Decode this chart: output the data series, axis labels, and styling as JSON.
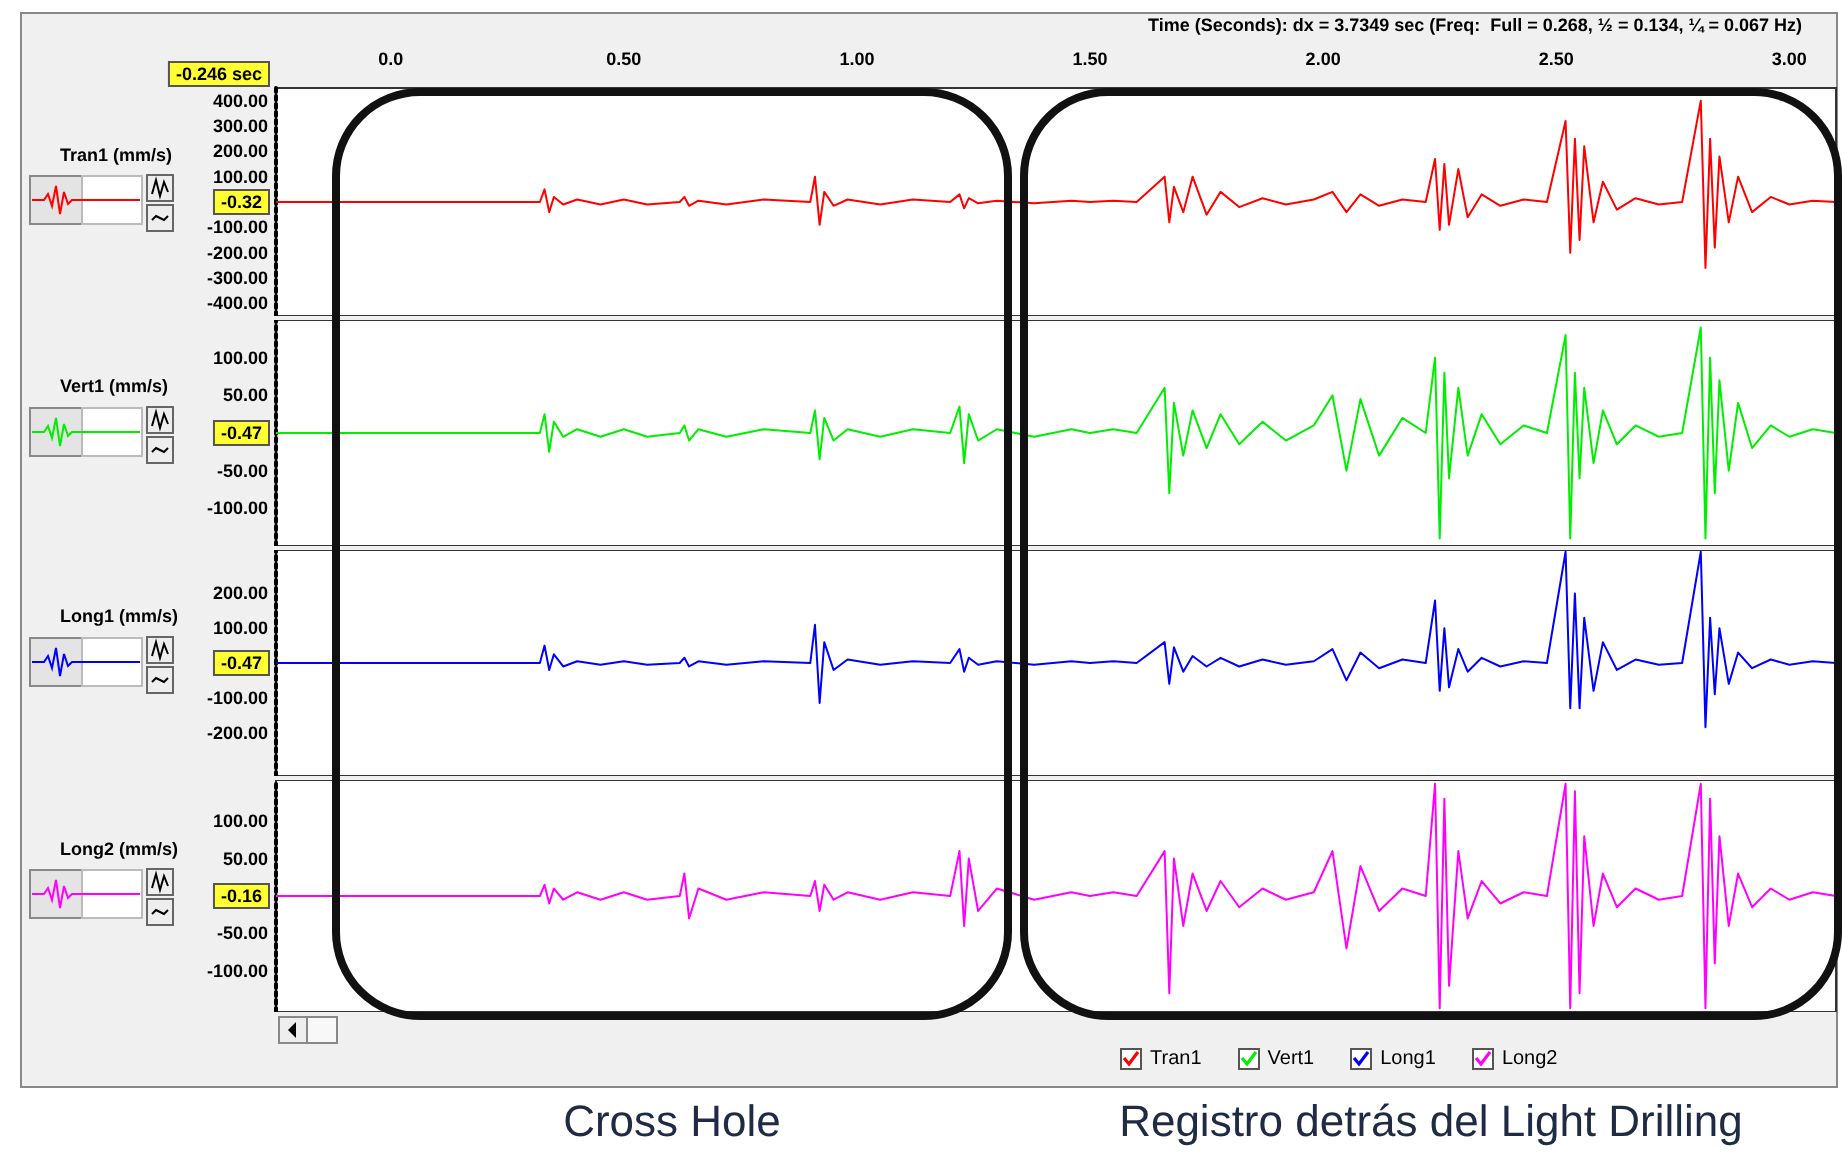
{
  "chart_data": [
    {
      "type": "line",
      "xlabel": "Time (Seconds): dx = 3.7349 sec (Freq:  Full = 0.268, ½ = 0.134, ¼ = 0.067 Hz)",
      "ylabel": "Tran1 (mm/s)",
      "xlim": [
        -0.246,
        3.1
      ],
      "xticks": [
        {
          "value": 0,
          "label": "0.0"
        },
        {
          "value": 0.5,
          "label": "0.50"
        },
        {
          "value": 1,
          "label": "1.00"
        },
        {
          "value": 1.5,
          "label": "1.50"
        },
        {
          "value": 2,
          "label": "2.00"
        },
        {
          "value": 2.5,
          "label": "2.50"
        },
        {
          "value": 3,
          "label": "3.00"
        }
      ],
      "ylim": [
        -450,
        450
      ],
      "yticks": [
        {
          "value": 400,
          "label": "400.00"
        },
        {
          "value": 300,
          "label": "300.00"
        },
        {
          "value": 200,
          "label": "200.00"
        },
        {
          "value": 100,
          "label": "100.00"
        },
        {
          "value": -100,
          "label": "-100.00"
        },
        {
          "value": -200,
          "label": "-200.00"
        },
        {
          "value": -300,
          "label": "-300.00"
        },
        {
          "value": -400,
          "label": "-400.00"
        }
      ],
      "annotations": [
        "-0.32",
        "-0.246 sec"
      ],
      "grid": false,
      "legend": "bottom",
      "marker": "none",
      "line_style": "solid",
      "x": [
        -0.246,
        0.0,
        0.32,
        0.33,
        0.34,
        0.35,
        0.37,
        0.4,
        0.45,
        0.5,
        0.55,
        0.62,
        0.63,
        0.64,
        0.66,
        0.72,
        0.8,
        0.9,
        0.91,
        0.92,
        0.93,
        0.95,
        0.98,
        1.05,
        1.12,
        1.2,
        1.22,
        1.23,
        1.24,
        1.26,
        1.3,
        1.38,
        1.46,
        1.5,
        1.55,
        1.6,
        1.66,
        1.67,
        1.68,
        1.7,
        1.72,
        1.75,
        1.78,
        1.82,
        1.87,
        1.92,
        1.98,
        2.02,
        2.05,
        2.08,
        2.12,
        2.17,
        2.22,
        2.24,
        2.25,
        2.26,
        2.27,
        2.29,
        2.31,
        2.34,
        2.38,
        2.43,
        2.48,
        2.52,
        2.53,
        2.54,
        2.55,
        2.56,
        2.58,
        2.6,
        2.63,
        2.67,
        2.72,
        2.77,
        2.81,
        2.82,
        2.83,
        2.84,
        2.85,
        2.87,
        2.89,
        2.92,
        2.96,
        3.0,
        3.05,
        3.1
      ],
      "series": [
        {
          "name": "Tran1",
          "color": "#ff0000",
          "values": [
            0,
            0,
            0,
            50,
            -40,
            20,
            -10,
            10,
            -10,
            10,
            -10,
            0,
            20,
            -15,
            5,
            -10,
            10,
            0,
            100,
            -90,
            40,
            -15,
            10,
            -10,
            10,
            0,
            30,
            -25,
            15,
            -5,
            5,
            -5,
            5,
            0,
            5,
            0,
            100,
            -80,
            60,
            -40,
            100,
            -50,
            40,
            -20,
            15,
            -10,
            10,
            40,
            -40,
            30,
            -15,
            10,
            0,
            170,
            -110,
            150,
            -90,
            130,
            -60,
            30,
            -15,
            10,
            0,
            320,
            -200,
            250,
            -150,
            220,
            -80,
            80,
            -30,
            15,
            -10,
            0,
            400,
            -260,
            250,
            -180,
            180,
            -80,
            100,
            -40,
            20,
            -10,
            5,
            0
          ]
        }
      ]
    },
    {
      "type": "line",
      "ylabel": "Vert1 (mm/s)",
      "xlim": [
        -0.246,
        3.1
      ],
      "ylim": [
        -150,
        150
      ],
      "yticks": [
        {
          "value": 100,
          "label": "100.00"
        },
        {
          "value": 50,
          "label": "50.00"
        },
        {
          "value": -50,
          "label": "-50.00"
        },
        {
          "value": -100,
          "label": "-100.00"
        }
      ],
      "annotations": [
        "-0.47"
      ],
      "tick_labels": "y",
      "grid": false,
      "legend": "bottom",
      "marker": "none",
      "line_style": "solid",
      "x": [
        -0.246,
        0.0,
        0.32,
        0.33,
        0.34,
        0.35,
        0.37,
        0.4,
        0.45,
        0.5,
        0.55,
        0.62,
        0.63,
        0.64,
        0.66,
        0.72,
        0.8,
        0.9,
        0.91,
        0.92,
        0.93,
        0.95,
        0.98,
        1.05,
        1.12,
        1.2,
        1.22,
        1.23,
        1.24,
        1.26,
        1.3,
        1.38,
        1.46,
        1.5,
        1.55,
        1.6,
        1.66,
        1.67,
        1.68,
        1.7,
        1.72,
        1.75,
        1.78,
        1.82,
        1.87,
        1.92,
        1.98,
        2.02,
        2.05,
        2.08,
        2.12,
        2.17,
        2.22,
        2.24,
        2.25,
        2.26,
        2.27,
        2.29,
        2.31,
        2.34,
        2.38,
        2.43,
        2.48,
        2.52,
        2.53,
        2.54,
        2.55,
        2.56,
        2.58,
        2.6,
        2.63,
        2.67,
        2.72,
        2.77,
        2.81,
        2.82,
        2.83,
        2.84,
        2.85,
        2.87,
        2.89,
        2.92,
        2.96,
        3.0,
        3.05,
        3.1
      ],
      "series": [
        {
          "name": "Vert1",
          "color": "#00ee00",
          "values": [
            0,
            0,
            0,
            25,
            -25,
            15,
            -5,
            5,
            -5,
            5,
            -5,
            0,
            10,
            -10,
            5,
            -5,
            5,
            0,
            30,
            -35,
            20,
            -10,
            5,
            -5,
            5,
            0,
            35,
            -40,
            25,
            -10,
            5,
            -5,
            5,
            0,
            5,
            0,
            60,
            -80,
            40,
            -30,
            30,
            -20,
            25,
            -15,
            15,
            -10,
            10,
            50,
            -50,
            45,
            -30,
            20,
            0,
            100,
            -140,
            80,
            -60,
            60,
            -30,
            25,
            -15,
            10,
            0,
            130,
            -140,
            80,
            -60,
            60,
            -40,
            30,
            -15,
            10,
            -5,
            0,
            140,
            -140,
            100,
            -80,
            70,
            -50,
            40,
            -20,
            10,
            -5,
            5,
            0
          ]
        }
      ]
    },
    {
      "type": "line",
      "ylabel": "Long1 (mm/s)",
      "xlim": [
        -0.246,
        3.1
      ],
      "ylim": [
        -325,
        325
      ],
      "yticks": [
        {
          "value": 200,
          "label": "200.00"
        },
        {
          "value": 100,
          "label": "100.00"
        },
        {
          "value": -100,
          "label": "-100.00"
        },
        {
          "value": -200,
          "label": "-200.00"
        }
      ],
      "annotations": [
        "-0.47"
      ],
      "tick_labels": "y",
      "grid": false,
      "legend": "bottom",
      "marker": "none",
      "line_style": "solid",
      "x": [
        -0.246,
        0.0,
        0.32,
        0.33,
        0.34,
        0.35,
        0.37,
        0.4,
        0.45,
        0.5,
        0.55,
        0.62,
        0.63,
        0.64,
        0.66,
        0.72,
        0.8,
        0.9,
        0.91,
        0.92,
        0.93,
        0.95,
        0.98,
        1.05,
        1.12,
        1.2,
        1.22,
        1.23,
        1.24,
        1.26,
        1.3,
        1.38,
        1.46,
        1.5,
        1.55,
        1.6,
        1.66,
        1.67,
        1.68,
        1.7,
        1.72,
        1.75,
        1.78,
        1.82,
        1.87,
        1.92,
        1.98,
        2.02,
        2.05,
        2.08,
        2.12,
        2.17,
        2.22,
        2.24,
        2.25,
        2.26,
        2.27,
        2.29,
        2.31,
        2.34,
        2.38,
        2.43,
        2.48,
        2.52,
        2.53,
        2.54,
        2.55,
        2.56,
        2.58,
        2.6,
        2.63,
        2.67,
        2.72,
        2.77,
        2.81,
        2.82,
        2.83,
        2.84,
        2.85,
        2.87,
        2.89,
        2.92,
        2.96,
        3.0,
        3.05,
        3.1
      ],
      "series": [
        {
          "name": "Long1",
          "color": "#0000ff",
          "values": [
            0,
            0,
            0,
            50,
            -20,
            25,
            -10,
            5,
            -5,
            5,
            -5,
            0,
            15,
            -10,
            5,
            -5,
            5,
            0,
            110,
            -115,
            60,
            -20,
            10,
            -5,
            5,
            0,
            40,
            -25,
            15,
            -5,
            5,
            -5,
            5,
            0,
            5,
            0,
            60,
            -60,
            45,
            -25,
            20,
            -10,
            15,
            -10,
            10,
            -5,
            5,
            40,
            -50,
            30,
            -15,
            10,
            0,
            180,
            -80,
            100,
            -70,
            40,
            -25,
            15,
            -10,
            5,
            0,
            320,
            -130,
            200,
            -130,
            130,
            -80,
            60,
            -20,
            10,
            -5,
            0,
            320,
            -185,
            130,
            -90,
            100,
            -60,
            30,
            -15,
            10,
            -5,
            5,
            0
          ]
        }
      ]
    },
    {
      "type": "line",
      "ylabel": "Long2 (mm/s)",
      "xlim": [
        -0.246,
        3.1
      ],
      "ylim": [
        -155,
        155
      ],
      "yticks": [
        {
          "value": 100,
          "label": "100.00"
        },
        {
          "value": 50,
          "label": "50.00"
        },
        {
          "value": -50,
          "label": "-50.00"
        },
        {
          "value": -100,
          "label": "-100.00"
        }
      ],
      "annotations": [
        "-0.16",
        "Cross Hole",
        "Registro detrás del Light Drilling"
      ],
      "tick_labels": "y",
      "grid": false,
      "legend": "bottom",
      "marker": "none",
      "line_style": "solid",
      "x": [
        -0.246,
        0.0,
        0.32,
        0.33,
        0.34,
        0.35,
        0.37,
        0.4,
        0.45,
        0.5,
        0.55,
        0.62,
        0.63,
        0.64,
        0.66,
        0.72,
        0.8,
        0.9,
        0.91,
        0.92,
        0.93,
        0.95,
        0.98,
        1.05,
        1.12,
        1.2,
        1.22,
        1.23,
        1.24,
        1.26,
        1.3,
        1.38,
        1.46,
        1.5,
        1.55,
        1.6,
        1.66,
        1.67,
        1.68,
        1.7,
        1.72,
        1.75,
        1.78,
        1.82,
        1.87,
        1.92,
        1.98,
        2.02,
        2.05,
        2.08,
        2.12,
        2.17,
        2.22,
        2.24,
        2.25,
        2.26,
        2.27,
        2.29,
        2.31,
        2.34,
        2.38,
        2.43,
        2.48,
        2.52,
        2.53,
        2.54,
        2.55,
        2.56,
        2.58,
        2.6,
        2.63,
        2.67,
        2.72,
        2.77,
        2.81,
        2.82,
        2.83,
        2.84,
        2.85,
        2.87,
        2.89,
        2.92,
        2.96,
        3.0,
        3.05,
        3.1
      ],
      "series": [
        {
          "name": "Long2",
          "color": "#ff00ff",
          "values": [
            0,
            0,
            0,
            15,
            -10,
            10,
            -5,
            5,
            -5,
            5,
            -5,
            0,
            30,
            -30,
            10,
            -5,
            5,
            0,
            20,
            -20,
            15,
            -5,
            5,
            -5,
            5,
            0,
            60,
            -40,
            50,
            -20,
            10,
            -5,
            5,
            0,
            5,
            0,
            60,
            -130,
            50,
            -40,
            30,
            -20,
            20,
            -15,
            10,
            -5,
            5,
            60,
            -70,
            40,
            -20,
            10,
            0,
            150,
            -150,
            130,
            -120,
            60,
            -30,
            20,
            -10,
            5,
            0,
            150,
            -150,
            140,
            -130,
            80,
            -40,
            30,
            -15,
            10,
            -5,
            0,
            150,
            -150,
            130,
            -90,
            80,
            -40,
            30,
            -15,
            10,
            -5,
            5,
            0
          ]
        }
      ]
    }
  ]
}
